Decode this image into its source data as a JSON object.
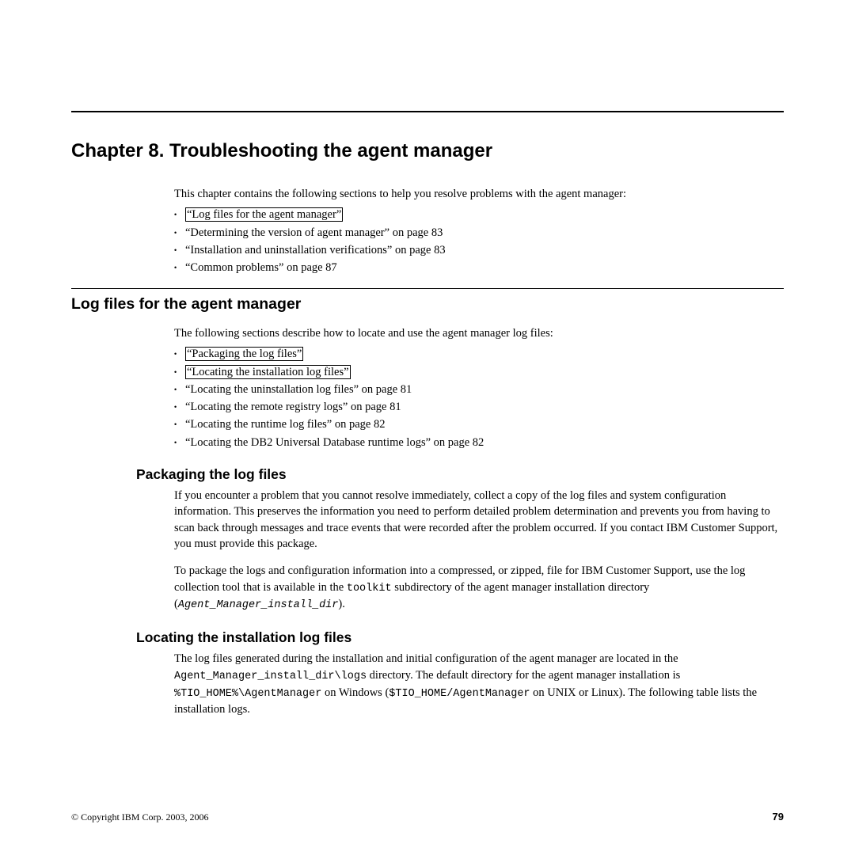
{
  "chapter_title": "Chapter 8. Troubleshooting the agent manager",
  "intro": "This chapter contains the following sections to help you resolve problems with the agent manager:",
  "chapter_bullets": [
    {
      "prefix": "",
      "link": "“Log files for the agent manager”",
      "suffix": ""
    },
    {
      "prefix": "“Determining the version of agent manager” on page 83",
      "link": "",
      "suffix": ""
    },
    {
      "prefix": "“Installation and uninstallation verifications” on page 83",
      "link": "",
      "suffix": ""
    },
    {
      "prefix": "“Common problems” on page 87",
      "link": "",
      "suffix": ""
    }
  ],
  "section_logfiles": {
    "title": "Log files for the agent manager",
    "intro": "The following sections describe how to locate and use the agent manager log files:",
    "bullets": [
      {
        "link": "“Packaging the log files”",
        "plain": ""
      },
      {
        "link": "“Locating the installation log files”",
        "plain": ""
      },
      {
        "link": "",
        "plain": "“Locating the uninstallation log files” on page 81"
      },
      {
        "link": "",
        "plain": "“Locating the remote registry logs” on page 81"
      },
      {
        "link": "",
        "plain": "“Locating the runtime log files” on page 82"
      },
      {
        "link": "",
        "plain": "“Locating the DB2 Universal Database runtime logs” on page 82"
      }
    ]
  },
  "section_packaging": {
    "title": "Packaging the log files",
    "p1": "If you encounter a problem that you cannot resolve immediately, collect a copy of the log files and system configuration information. This preserves the information you need to perform detailed problem determination and prevents you from having to scan back through messages and trace events that were recorded after the problem occurred. If you contact IBM Customer Support, you must provide this package.",
    "p2a": "To package the logs and configuration information into a compressed, or zipped, file for IBM Customer Support, use the log collection tool that is available in the ",
    "p2_code1": "toolkit",
    "p2b": " subdirectory of the agent manager installation directory (",
    "p2_code2": "Agent_Manager_install_dir",
    "p2c": ")."
  },
  "section_locating": {
    "title": "Locating the installation log files",
    "p1a": "The log files generated during the installation and initial configuration of the agent manager are located in the ",
    "p1_code1": "Agent_Manager_install_dir\\logs",
    "p1b": " directory. The default directory for the agent manager installation is ",
    "p1_code2": "%TIO_HOME%\\AgentManager",
    "p1c": " on Windows (",
    "p1_code3": "$TIO_HOME/AgentManager",
    "p1d": " on UNIX or Linux). The following table lists the installation logs."
  },
  "footer": {
    "copyright": "© Copyright IBM Corp. 2003, 2006",
    "page": "79"
  }
}
